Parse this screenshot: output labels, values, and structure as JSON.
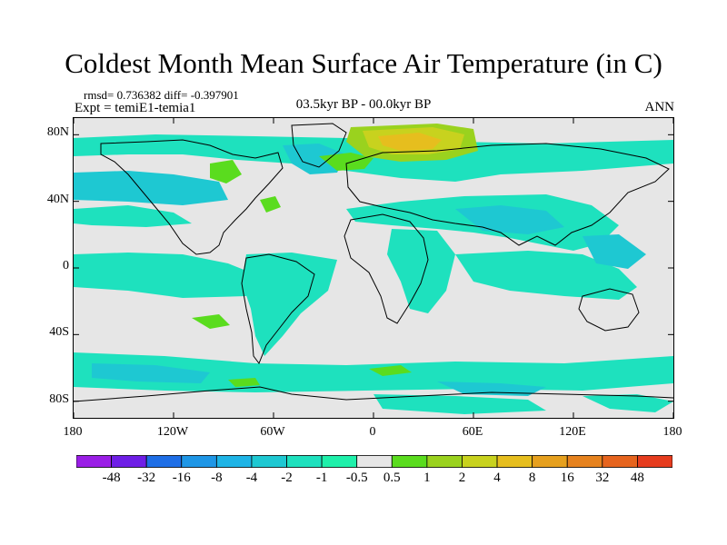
{
  "title": "Coldest Month Mean Surface Air Temperature (in C)",
  "stats": "rmsd= 0.736382 diff= -0.397901",
  "experiment": "Expt = temiE1-temia1",
  "period": "03.5kyr BP - 00.0kyr BP",
  "season": "ANN",
  "map": {
    "projection": "cylindrical-equidistant",
    "lat_ticks": [
      {
        "value": 80,
        "label": "80N"
      },
      {
        "value": 40,
        "label": "40N"
      },
      {
        "value": 0,
        "label": "0"
      },
      {
        "value": -40,
        "label": "40S"
      },
      {
        "value": -80,
        "label": "80S"
      }
    ],
    "lon_ticks": [
      {
        "value": -180,
        "label": "180"
      },
      {
        "value": -120,
        "label": "120W"
      },
      {
        "value": -60,
        "label": "60W"
      },
      {
        "value": 0,
        "label": "0"
      },
      {
        "value": 60,
        "label": "60E"
      },
      {
        "value": 120,
        "label": "120E"
      },
      {
        "value": 180,
        "label": "180"
      }
    ],
    "lat_range": [
      -90,
      90
    ],
    "lon_range": [
      -180,
      180
    ],
    "background_color": "#e6e6e6"
  },
  "colorbar": {
    "colors": [
      "#9a1ee6",
      "#6e1ee6",
      "#1e6ee6",
      "#1e96e6",
      "#1eb4e6",
      "#1ec8d2",
      "#1ee1be",
      "#1ef0aa",
      "#e6e6e6",
      "#5adc1e",
      "#9ad21e",
      "#c8d21e",
      "#e6be1e",
      "#e6a01e",
      "#e6821e",
      "#e6641e",
      "#e63c1e"
    ],
    "labels": [
      "-48",
      "-32",
      "-16",
      "-8",
      "-4",
      "-2",
      "-1",
      "-0.5",
      "0.5",
      "1",
      "2",
      "4",
      "8",
      "16",
      "32",
      "48"
    ]
  }
}
